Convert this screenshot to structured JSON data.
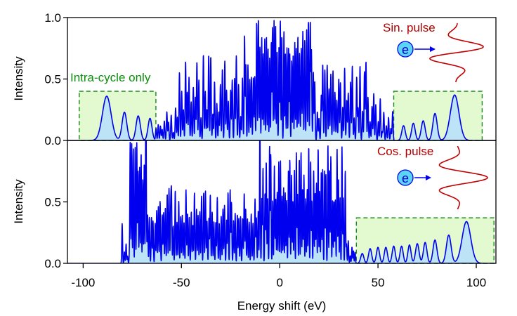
{
  "chart_data": [
    {
      "type": "area",
      "panel": "top",
      "ylabel": "Intensity",
      "xlim": [
        -108,
        110
      ],
      "ylim": [
        0,
        1.0
      ],
      "yticks": [
        {
          "value": 0.0,
          "label": "0.0"
        },
        {
          "value": 0.5,
          "label": "0.5"
        },
        {
          "value": 1.0,
          "label": "1.0"
        }
      ],
      "annotations": {
        "region_label": "Intra-cycle only",
        "pulse_label": "Sin. pulse",
        "electron_label": "e"
      },
      "boxes": [
        {
          "x": [
            -102,
            -63
          ],
          "y": [
            0,
            0.4
          ]
        },
        {
          "x": [
            58,
            103
          ],
          "y": [
            0,
            0.4
          ]
        }
      ],
      "gaussian_peaks": [
        {
          "x": -88,
          "h": 0.36,
          "w": 2.2
        },
        {
          "x": -79,
          "h": 0.23,
          "w": 1.2
        },
        {
          "x": -72,
          "h": 0.2,
          "w": 1.1
        },
        {
          "x": -66,
          "h": 0.18,
          "w": 1.0
        },
        {
          "x": 63,
          "h": 0.12,
          "w": 0.9
        },
        {
          "x": 68,
          "h": 0.14,
          "w": 0.9
        },
        {
          "x": 73,
          "h": 0.16,
          "w": 1.0
        },
        {
          "x": 79,
          "h": 0.22,
          "w": 1.1
        },
        {
          "x": 89,
          "h": 0.37,
          "w": 2.2
        }
      ],
      "dense_regions": [
        {
          "x": [
            -63,
            -52
          ],
          "step": 1.1,
          "amp": [
            0.05,
            0.28
          ]
        },
        {
          "x": [
            -52,
            -18
          ],
          "step": 1.0,
          "amp": [
            0.15,
            0.7
          ]
        },
        {
          "x": [
            -18,
            -10
          ],
          "step": 0.9,
          "amp": [
            0.5,
            1.0
          ]
        },
        {
          "x": [
            -10,
            10
          ],
          "step": 0.8,
          "amp": [
            0.6,
            1.0
          ]
        },
        {
          "x": [
            10,
            18
          ],
          "step": 0.9,
          "amp": [
            0.5,
            1.0
          ]
        },
        {
          "x": [
            18,
            52
          ],
          "step": 1.0,
          "amp": [
            0.15,
            0.7
          ]
        },
        {
          "x": [
            52,
            58
          ],
          "step": 1.1,
          "amp": [
            0.05,
            0.25
          ]
        }
      ]
    },
    {
      "type": "area",
      "panel": "bottom",
      "xlabel": "Energy shift (eV)",
      "ylabel": "Intensity",
      "xlim": [
        -108,
        110
      ],
      "ylim": [
        0,
        1.0
      ],
      "xticks": [
        {
          "value": -100,
          "label": "-100"
        },
        {
          "value": -50,
          "label": "-50"
        },
        {
          "value": 0,
          "label": "0"
        },
        {
          "value": 50,
          "label": "50"
        },
        {
          "value": 100,
          "label": "100"
        }
      ],
      "yticks": [
        {
          "value": 0.0,
          "label": "0.0"
        },
        {
          "value": 0.5,
          "label": "0.5"
        }
      ],
      "annotations": {
        "pulse_label": "Cos. pulse",
        "electron_label": "e"
      },
      "boxes": [
        {
          "x": [
            39,
            109
          ],
          "y": [
            0,
            0.37
          ]
        }
      ],
      "gaussian_peaks": [
        {
          "x": 42,
          "h": 0.08,
          "w": 0.8
        },
        {
          "x": 46,
          "h": 0.12,
          "w": 0.8
        },
        {
          "x": 50,
          "h": 0.13,
          "w": 0.8
        },
        {
          "x": 54,
          "h": 0.13,
          "w": 0.8
        },
        {
          "x": 58,
          "h": 0.14,
          "w": 0.8
        },
        {
          "x": 62,
          "h": 0.14,
          "w": 0.8
        },
        {
          "x": 66,
          "h": 0.15,
          "w": 0.8
        },
        {
          "x": 70,
          "h": 0.16,
          "w": 0.9
        },
        {
          "x": 74,
          "h": 0.17,
          "w": 0.9
        },
        {
          "x": 79,
          "h": 0.19,
          "w": 1.0
        },
        {
          "x": 86,
          "h": 0.23,
          "w": 1.2
        },
        {
          "x": 95,
          "h": 0.34,
          "w": 2.2
        }
      ],
      "dense_regions": [
        {
          "x": [
            -80,
            -76
          ],
          "step": 0.9,
          "amp": [
            0.05,
            0.45
          ]
        },
        {
          "x": [
            -76,
            -68
          ],
          "step": 0.8,
          "amp": [
            0.6,
            1.0
          ]
        },
        {
          "x": [
            -68,
            -55
          ],
          "step": 0.9,
          "amp": [
            0.3,
            0.65
          ]
        },
        {
          "x": [
            -55,
            -10
          ],
          "step": 0.9,
          "amp": [
            0.3,
            0.6
          ]
        },
        {
          "x": [
            -10,
            34
          ],
          "step": 0.8,
          "amp": [
            0.5,
            1.0
          ]
        },
        {
          "x": [
            34,
            39
          ],
          "step": 0.9,
          "amp": [
            0.05,
            0.25
          ]
        }
      ]
    }
  ]
}
